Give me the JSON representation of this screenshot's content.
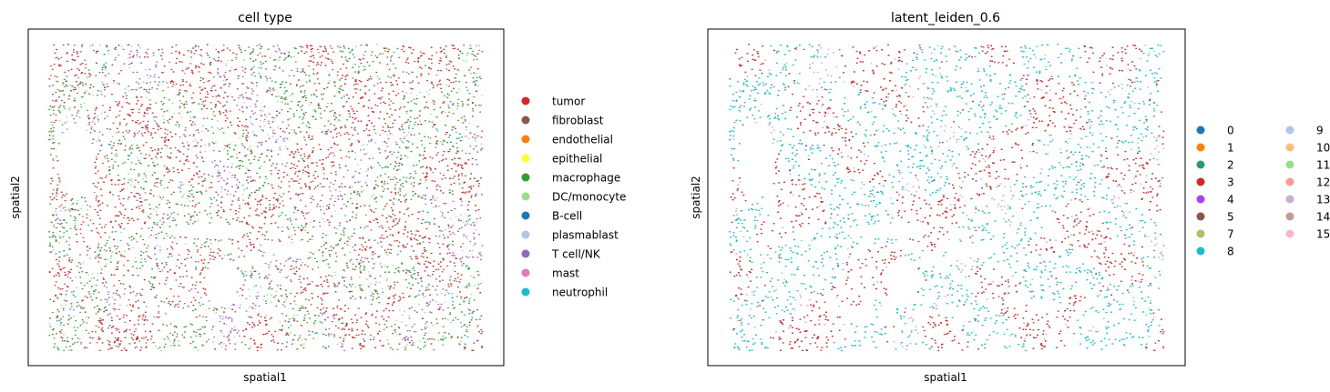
{
  "chart_data": [
    {
      "type": "scatter",
      "title": "cell type",
      "xlabel": "spatial1",
      "ylabel": "spatial2",
      "xticks": [],
      "yticks": [],
      "legend_position": "right",
      "legend_columns": 1,
      "categories": [
        {
          "name": "tumor",
          "color": "#d62728"
        },
        {
          "name": "fibroblast",
          "color": "#8c564b"
        },
        {
          "name": "endothelial",
          "color": "#ff7f0e"
        },
        {
          "name": "epithelial",
          "color": "#ffff33"
        },
        {
          "name": "macrophage",
          "color": "#2ca02c"
        },
        {
          "name": "DC/monocyte",
          "color": "#98df8a"
        },
        {
          "name": "B-cell",
          "color": "#1f77b4"
        },
        {
          "name": "plasmablast",
          "color": "#aec7e8"
        },
        {
          "name": "T cell/NK",
          "color": "#9467bd"
        },
        {
          "name": "mast",
          "color": "#e377c2"
        },
        {
          "name": "neutrophil",
          "color": "#17becf"
        }
      ]
    },
    {
      "type": "scatter",
      "title": "latent_leiden_0.6",
      "xlabel": "spatial1",
      "ylabel": "spatial2",
      "xticks": [],
      "yticks": [],
      "legend_position": "right",
      "legend_columns": 2,
      "categories": [
        {
          "name": "0",
          "color": "#1f77b4"
        },
        {
          "name": "1",
          "color": "#ff7f0e"
        },
        {
          "name": "2",
          "color": "#279e68"
        },
        {
          "name": "3",
          "color": "#d62728"
        },
        {
          "name": "4",
          "color": "#aa40fc"
        },
        {
          "name": "5",
          "color": "#8c564b"
        },
        {
          "name": "7",
          "color": "#b5bd61"
        },
        {
          "name": "8",
          "color": "#17becf"
        },
        {
          "name": "9",
          "color": "#aec7e8"
        },
        {
          "name": "10",
          "color": "#ffbb78"
        },
        {
          "name": "11",
          "color": "#98df8a"
        },
        {
          "name": "12",
          "color": "#ff9896"
        },
        {
          "name": "13",
          "color": "#c5b0d5"
        },
        {
          "name": "14",
          "color": "#c49c94"
        },
        {
          "name": "15",
          "color": "#f7b6d2"
        }
      ]
    }
  ]
}
